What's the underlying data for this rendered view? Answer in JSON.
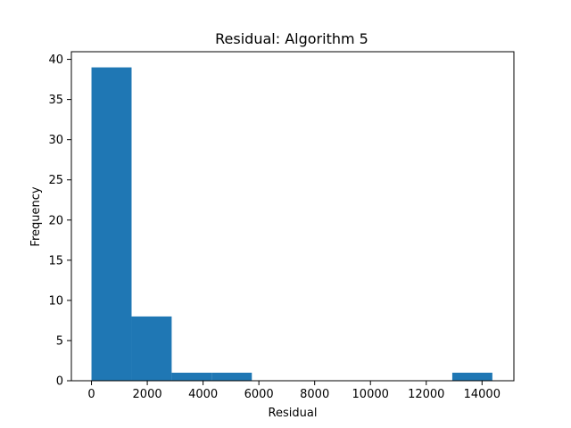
{
  "chart_data": {
    "type": "bar",
    "title": "Residual: Algorithm 5",
    "xlabel": "Residual",
    "ylabel": "Frequency",
    "grid": false,
    "xlim": [
      -721,
      15142
    ],
    "ylim": [
      0,
      40.95
    ],
    "x_ticks": [
      0,
      2000,
      4000,
      6000,
      8000,
      10000,
      12000,
      14000
    ],
    "x_tick_labels": [
      "0",
      "2000",
      "4000",
      "6000",
      "8000",
      "10000",
      "12000",
      "14000"
    ],
    "y_ticks": [
      0,
      5,
      10,
      15,
      20,
      25,
      30,
      35,
      40
    ],
    "y_tick_labels": [
      "0",
      "5",
      "10",
      "15",
      "20",
      "25",
      "30",
      "35",
      "40"
    ],
    "bins": [
      {
        "start": 0,
        "end": 1437,
        "count": 39
      },
      {
        "start": 1437,
        "end": 2874,
        "count": 8
      },
      {
        "start": 2874,
        "end": 4311,
        "count": 1
      },
      {
        "start": 4311,
        "end": 5748,
        "count": 1
      },
      {
        "start": 5748,
        "end": 7185,
        "count": 0
      },
      {
        "start": 7185,
        "end": 8622,
        "count": 0
      },
      {
        "start": 8622,
        "end": 10059,
        "count": 0
      },
      {
        "start": 10059,
        "end": 11496,
        "count": 0
      },
      {
        "start": 11496,
        "end": 12933,
        "count": 0
      },
      {
        "start": 12933,
        "end": 14370,
        "count": 1
      }
    ],
    "bar_color": "#1f77b4"
  }
}
